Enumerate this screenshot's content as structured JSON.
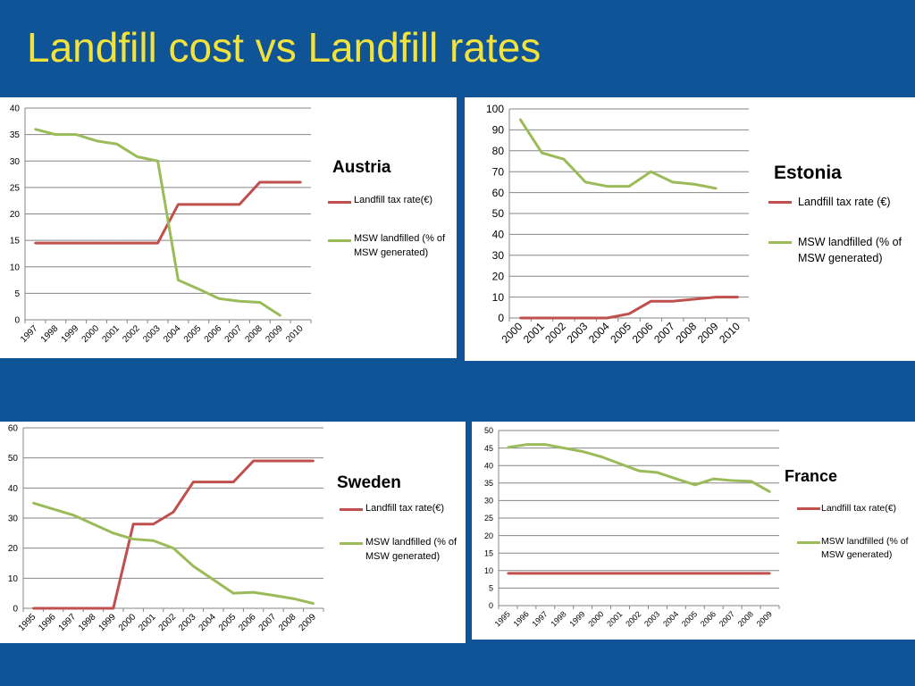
{
  "slide": {
    "title": "Landfill cost vs Landfill rates"
  },
  "colors": {
    "background": "#0f5496",
    "title": "#f2e23c",
    "tax_series": "#c0504d",
    "msw_series": "#9bbb59",
    "gridline": "#868686"
  },
  "legend": {
    "tax_label_tight": "Landfill tax rate(€)",
    "tax_label_spaced": "Landfill tax rate (€)",
    "msw_label_tight": "MSW landfilled (% of MSW generated)",
    "msw_label_spaced": "MSW landfilled (% of MSW generated)"
  },
  "chart_data": [
    {
      "type": "line",
      "country": "Austria",
      "categories": [
        "1997",
        "1998",
        "1999",
        "2000",
        "2001",
        "2002",
        "2003",
        "2004",
        "2005",
        "2006",
        "2007",
        "2008",
        "2009",
        "2010"
      ],
      "ylim": [
        0,
        40
      ],
      "yticks": [
        0,
        5,
        10,
        15,
        20,
        25,
        30,
        35,
        40
      ],
      "grid": true,
      "legend_position": "right",
      "series": [
        {
          "name": "Landfill tax rate(€)",
          "color": "#c0504d",
          "values": [
            14.5,
            14.5,
            14.5,
            14.5,
            14.5,
            14.5,
            14.5,
            21.8,
            21.8,
            21.8,
            21.8,
            26,
            26,
            26
          ]
        },
        {
          "name": "MSW landfilled (% of MSW generated)",
          "color": "#9bbb59",
          "values": [
            36,
            35,
            35,
            33.8,
            33.2,
            30.8,
            30,
            7.5,
            5.8,
            4,
            3.5,
            3.3,
            0.8,
            null
          ]
        }
      ]
    },
    {
      "type": "line",
      "country": "Estonia",
      "categories": [
        "2000",
        "2001",
        "2002",
        "2003",
        "2004",
        "2005",
        "2006",
        "2007",
        "2008",
        "2009",
        "2010"
      ],
      "ylim": [
        0,
        100
      ],
      "yticks": [
        0,
        10,
        20,
        30,
        40,
        50,
        60,
        70,
        80,
        90,
        100
      ],
      "grid": true,
      "legend_position": "right",
      "series": [
        {
          "name": "Landfill tax rate (€)",
          "color": "#c0504d",
          "values": [
            0,
            0,
            0,
            0,
            0,
            2,
            8,
            8,
            9,
            10,
            10
          ]
        },
        {
          "name": "MSW landfilled (% of MSW generated)",
          "color": "#9bbb59",
          "values": [
            95,
            79,
            76,
            65,
            63,
            63,
            70,
            65,
            64,
            62,
            null
          ]
        }
      ]
    },
    {
      "type": "line",
      "country": "Sweden",
      "categories": [
        "1995",
        "1996",
        "1997",
        "1998",
        "1999",
        "2000",
        "2001",
        "2002",
        "2003",
        "2004",
        "2005",
        "2006",
        "2007",
        "2008",
        "2009"
      ],
      "ylim": [
        0,
        60
      ],
      "yticks": [
        0,
        10,
        20,
        30,
        40,
        50,
        60
      ],
      "grid": true,
      "legend_position": "right",
      "series": [
        {
          "name": "Landfill tax rate(€)",
          "color": "#c0504d",
          "values": [
            0,
            0,
            0,
            0,
            0,
            28,
            28,
            32,
            42,
            42,
            42,
            49,
            49,
            49,
            49
          ]
        },
        {
          "name": "MSW landfilled (% of MSW generated)",
          "color": "#9bbb59",
          "values": [
            35,
            33,
            31,
            28,
            25,
            23,
            22.5,
            20,
            14,
            9.5,
            5,
            5.3,
            4.3,
            3.2,
            1.6
          ]
        }
      ]
    },
    {
      "type": "line",
      "country": "France",
      "categories": [
        "1995",
        "1996",
        "1997",
        "1998",
        "1999",
        "2000",
        "2001",
        "2002",
        "2003",
        "2004",
        "2005",
        "2006",
        "2007",
        "2008",
        "2009"
      ],
      "ylim": [
        0,
        50
      ],
      "yticks": [
        0,
        5,
        10,
        15,
        20,
        25,
        30,
        35,
        40,
        45,
        50
      ],
      "grid": true,
      "legend_position": "right",
      "series": [
        {
          "name": "Landfill tax rate(€)",
          "color": "#c0504d",
          "values": [
            9.2,
            9.2,
            9.2,
            9.2,
            9.2,
            9.2,
            9.2,
            9.2,
            9.2,
            9.2,
            9.2,
            9.2,
            9.2,
            9.2,
            9.2
          ]
        },
        {
          "name": "MSW landfilled (% of MSW generated)",
          "color": "#9bbb59",
          "values": [
            45.2,
            46,
            46,
            45,
            44,
            42.5,
            40.5,
            38.5,
            38,
            36.2,
            34.5,
            36.2,
            35.7,
            35.5,
            32.5
          ]
        }
      ]
    }
  ]
}
